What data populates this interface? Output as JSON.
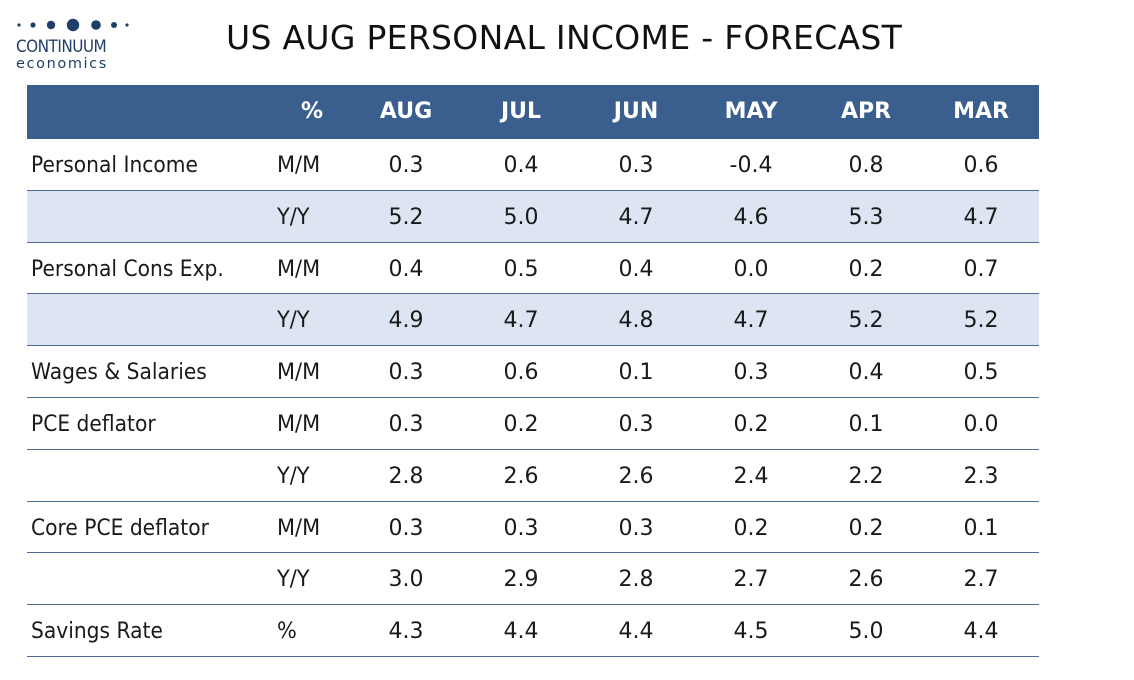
{
  "logo": {
    "name": "CONTINUUM",
    "sub": "economics"
  },
  "title": "US AUG PERSONAL INCOME - FORECAST",
  "colors": {
    "header_bg": "#3a5e8e",
    "shaded_row": "#dce5f1",
    "rule": "#4a6a94",
    "brand": "#1f3f6a"
  },
  "chart_data": {
    "type": "table",
    "columns": [
      "%",
      "AUG",
      "JUL",
      "JUN",
      "MAY",
      "APR",
      "MAR"
    ],
    "rows": [
      {
        "label": "Personal Income",
        "unit": "M/M",
        "values": [
          "0.3",
          "0.4",
          "0.3",
          "-0.4",
          "0.8",
          "0.6"
        ]
      },
      {
        "label": "",
        "unit": "Y/Y",
        "values": [
          "5.2",
          "5.0",
          "4.7",
          "4.6",
          "5.3",
          "4.7"
        ]
      },
      {
        "label": "Personal Cons Exp.",
        "unit": "M/M",
        "values": [
          "0.4",
          "0.5",
          "0.4",
          "0.0",
          "0.2",
          "0.7"
        ]
      },
      {
        "label": "",
        "unit": "Y/Y",
        "values": [
          "4.9",
          "4.7",
          "4.8",
          "4.7",
          "5.2",
          "5.2"
        ]
      },
      {
        "label": "Wages & Salaries",
        "unit": "M/M",
        "values": [
          "0.3",
          "0.6",
          "0.1",
          "0.3",
          "0.4",
          "0.5"
        ]
      },
      {
        "label": "PCE deflator",
        "unit": "M/M",
        "values": [
          "0.3",
          "0.2",
          "0.3",
          "0.2",
          "0.1",
          "0.0"
        ]
      },
      {
        "label": "",
        "unit": "Y/Y",
        "values": [
          "2.8",
          "2.6",
          "2.6",
          "2.4",
          "2.2",
          "2.3"
        ]
      },
      {
        "label": "Core PCE deflator",
        "unit": "M/M",
        "values": [
          "0.3",
          "0.3",
          "0.3",
          "0.2",
          "0.2",
          "0.1"
        ]
      },
      {
        "label": "",
        "unit": "Y/Y",
        "values": [
          "3.0",
          "2.9",
          "2.8",
          "2.7",
          "2.6",
          "2.7"
        ]
      },
      {
        "label": "Savings Rate",
        "unit": "%",
        "values": [
          "4.3",
          "4.4",
          "4.4",
          "4.5",
          "5.0",
          "4.4"
        ]
      }
    ],
    "shaded_rows": [
      1,
      3
    ]
  }
}
